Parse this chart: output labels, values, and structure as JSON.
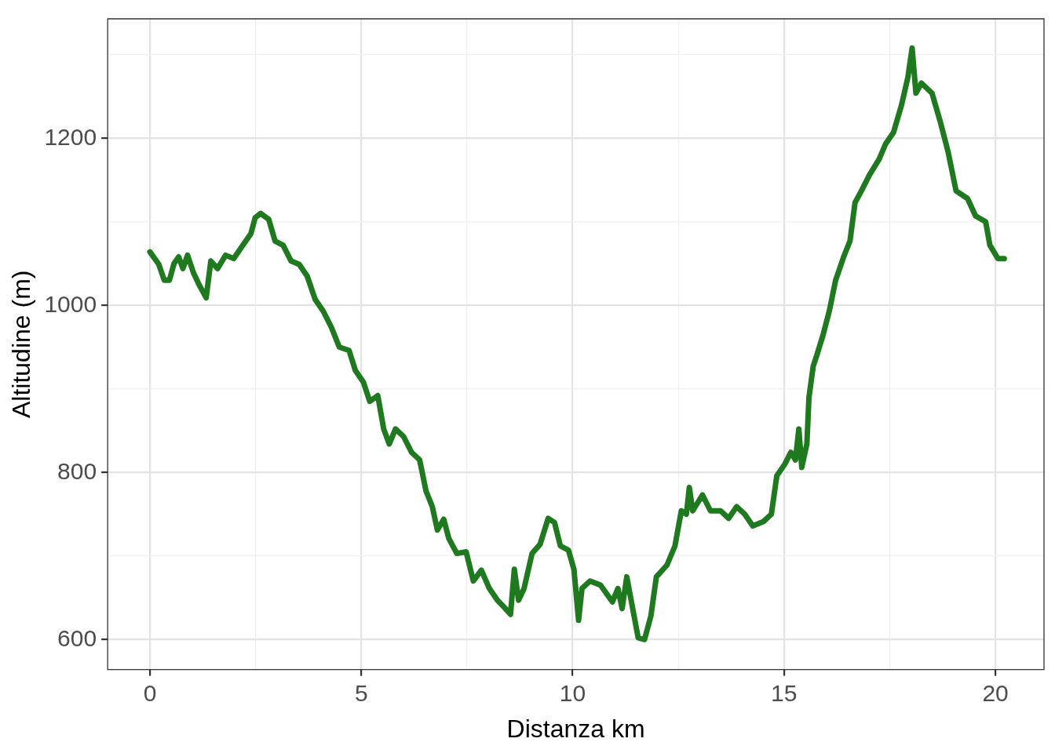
{
  "chart_data": {
    "type": "line",
    "xlabel": "Distanza km",
    "ylabel": "Altitudine (m)",
    "grid": true,
    "legend": false,
    "marker": "none",
    "line_style": "solid",
    "xlim": [
      -1,
      21.15
    ],
    "ylim": [
      564,
      1343
    ],
    "xticks": [
      0,
      {
        "value": 2.5,
        "label": null
      },
      5,
      {
        "value": 7.5,
        "label": null
      },
      10,
      {
        "value": 12.5,
        "label": null
      },
      15,
      {
        "value": 17.5,
        "label": null
      },
      20
    ],
    "yticks": [
      600,
      {
        "value": 700,
        "label": null
      },
      800,
      {
        "value": 900,
        "label": null
      },
      1000,
      {
        "value": 1100,
        "label": null
      },
      1200,
      {
        "value": 1300,
        "label": null
      }
    ],
    "series": [
      {
        "color": "#1f7a1f",
        "x": [
          0,
          0.21,
          0.34,
          0.46,
          0.57,
          0.68,
          0.78,
          0.89,
          1.03,
          1.16,
          1.33,
          1.44,
          1.6,
          1.79,
          1.98,
          2.2,
          2.39,
          2.49,
          2.62,
          2.81,
          2.96,
          3.15,
          3.34,
          3.53,
          3.72,
          3.91,
          4.1,
          4.29,
          4.48,
          4.71,
          4.86,
          5.05,
          5.2,
          5.39,
          5.53,
          5.66,
          5.81,
          6.0,
          6.19,
          6.38,
          6.53,
          6.68,
          6.8,
          6.95,
          7.07,
          7.26,
          7.48,
          7.65,
          7.84,
          8.03,
          8.22,
          8.41,
          8.53,
          8.62,
          8.72,
          8.85,
          9.04,
          9.23,
          9.42,
          9.57,
          9.71,
          9.9,
          10.03,
          10.14,
          10.22,
          10.41,
          10.66,
          10.94,
          11.07,
          11.17,
          11.28,
          11.42,
          11.55,
          11.7,
          11.85,
          11.98,
          12.23,
          12.42,
          12.57,
          12.69,
          12.76,
          12.84,
          13.07,
          13.26,
          13.5,
          13.69,
          13.88,
          14.07,
          14.26,
          14.51,
          14.7,
          14.83,
          15.02,
          15.16,
          15.27,
          15.35,
          15.42,
          15.54,
          15.59,
          15.69,
          15.78,
          15.92,
          16.07,
          16.22,
          16.41,
          16.56,
          16.68,
          16.83,
          17.02,
          17.25,
          17.4,
          17.59,
          17.78,
          17.93,
          18.03,
          18.12,
          18.25,
          18.5,
          18.69,
          18.88,
          19.07,
          19.34,
          19.53,
          19.77,
          19.87,
          20.06,
          20.21
        ],
        "values": [
          1064,
          1049,
          1030,
          1030,
          1050,
          1058,
          1044,
          1060,
          1039,
          1025,
          1009,
          1053,
          1044,
          1060,
          1056,
          1072,
          1086,
          1105,
          1110,
          1103,
          1077,
          1072,
          1053,
          1049,
          1035,
          1007,
          993,
          974,
          950,
          946,
          922,
          908,
          885,
          892,
          852,
          834,
          852,
          843,
          824,
          815,
          778,
          759,
          731,
          744,
          721,
          703,
          705,
          670,
          683,
          661,
          647,
          637,
          630,
          684,
          647,
          661,
          703,
          714,
          745,
          740,
          712,
          707,
          684,
          623,
          661,
          670,
          665,
          645,
          661,
          637,
          675,
          637,
          602,
          600,
          628,
          675,
          689,
          712,
          754,
          750,
          782,
          754,
          773,
          754,
          754,
          745,
          759,
          750,
          736,
          741,
          750,
          796,
          810,
          824,
          815,
          852,
          806,
          834,
          890,
          927,
          941,
          964,
          993,
          1030,
          1058,
          1077,
          1123,
          1137,
          1156,
          1175,
          1193,
          1207,
          1240,
          1273,
          1308,
          1254,
          1266,
          1254,
          1221,
          1184,
          1137,
          1128,
          1107,
          1100,
          1072,
          1056,
          1056
        ]
      }
    ]
  }
}
